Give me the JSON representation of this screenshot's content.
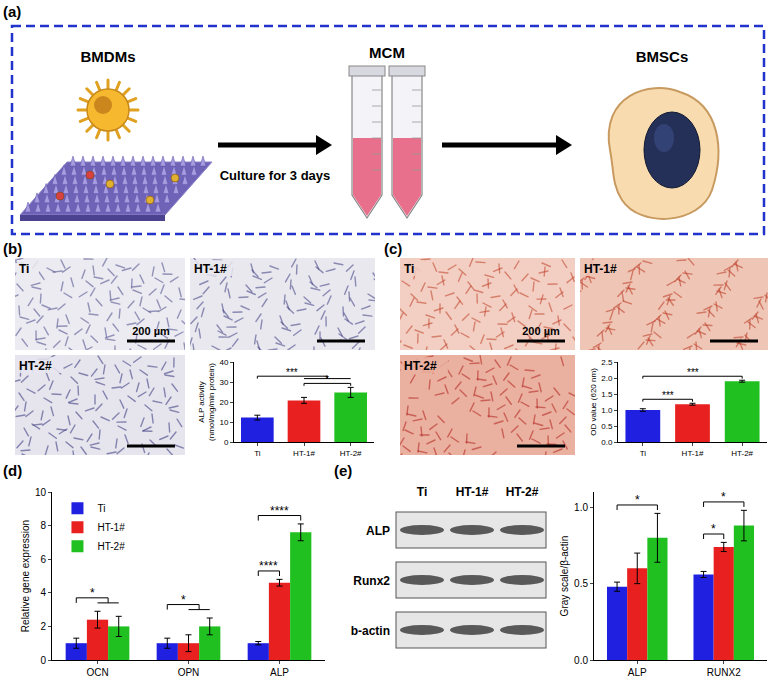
{
  "panel_labels": [
    "(a)",
    "(b)",
    "(c)",
    "(d)",
    "(e)"
  ],
  "schematic": {
    "cell_label": "BMDMs",
    "arrow_label": "Culture for 3 days",
    "medium_label": "MCM",
    "target_label": "BMSCs"
  },
  "micrographs": {
    "b": {
      "labels": [
        "Ti",
        "HT-1#",
        "HT-2#"
      ],
      "scale_bar": "200 µm"
    },
    "c": {
      "labels": [
        "Ti",
        "HT-1#",
        "HT-2#"
      ],
      "scale_bar": "200 µm"
    }
  },
  "western_blot": {
    "lanes": [
      "Ti",
      "HT-1#",
      "HT-2#"
    ],
    "rows": [
      "ALP",
      "Runx2",
      "b-actin"
    ]
  },
  "chart_data": [
    {
      "type": "bar",
      "ylabel": [
        "ALP activity",
        "(nmol/mg/min protein)"
      ],
      "categories": [
        "Ti",
        "HT-1#",
        "HT-2#"
      ],
      "values": [
        12.2,
        20.8,
        24.8
      ],
      "errors": [
        1.2,
        1.5,
        2.5
      ],
      "colors": [
        "#2020e0",
        "#e82020",
        "#20c020"
      ],
      "ylim": [
        0,
        40
      ],
      "yticks": [
        0,
        10,
        20,
        30,
        40
      ],
      "grid": false,
      "significance": [
        {
          "from": "HT-1#",
          "to": "HT-2#",
          "label": "*"
        },
        {
          "from": "Ti",
          "to": [
            "HT-1#",
            "HT-2#"
          ],
          "label": "***"
        }
      ]
    },
    {
      "type": "bar",
      "ylabel": "OD value (620 nm)",
      "categories": [
        "Ti",
        "HT-1#",
        "HT-2#"
      ],
      "values": [
        1.0,
        1.18,
        1.9
      ],
      "errors": [
        0.04,
        0.03,
        0.03
      ],
      "colors": [
        "#2020e0",
        "#e82020",
        "#20c020"
      ],
      "ylim": [
        0,
        2.5
      ],
      "yticks": [
        {
          "value": 0,
          "label": "0.0"
        },
        {
          "value": 0.5,
          "label": "0.5"
        },
        {
          "value": 1,
          "label": "1.0"
        },
        {
          "value": 1.5,
          "label": "1.5"
        },
        {
          "value": 2,
          "label": "2.0"
        },
        {
          "value": 2.5,
          "label": "2.5"
        }
      ],
      "grid": false,
      "significance": [
        {
          "from": "Ti",
          "to": "HT-1#",
          "label": "***"
        },
        {
          "from": "Ti",
          "to": "HT-2#",
          "label": "***"
        }
      ]
    },
    {
      "type": "bar",
      "ylabel": "Relative gene expression",
      "categories": [
        "OCN",
        "OPN",
        "ALP"
      ],
      "series": [
        {
          "name": "Ti",
          "color": "#2020e0",
          "values": [
            1.0,
            1.0,
            1.0
          ],
          "errors": [
            0.3,
            0.3,
            0.1
          ]
        },
        {
          "name": "HT-1#",
          "color": "#e82020",
          "values": [
            2.4,
            1.0,
            4.6
          ],
          "errors": [
            0.5,
            0.5,
            0.2
          ]
        },
        {
          "name": "HT-2#",
          "color": "#20c020",
          "values": [
            2.0,
            2.0,
            7.6
          ],
          "errors": [
            0.6,
            0.5,
            0.5
          ]
        }
      ],
      "ylim": [
        0,
        10
      ],
      "yticks": [
        0,
        2,
        4,
        6,
        8,
        10
      ],
      "grid": false,
      "legend": "top left",
      "significance": [
        {
          "category": "OCN",
          "from": "Ti",
          "to": [
            "HT-1#",
            "HT-2#"
          ],
          "label": "*"
        },
        {
          "category": "OPN",
          "from": "Ti",
          "to": [
            "HT-1#",
            "HT-2#"
          ],
          "label": "*"
        },
        {
          "category": "ALP",
          "from": "Ti",
          "to": "HT-1#",
          "label": "****"
        },
        {
          "category": "ALP",
          "from": "Ti",
          "to": "HT-2#",
          "label": "****"
        }
      ]
    },
    {
      "type": "bar",
      "ylabel": "Gray scale/β-actin",
      "categories": [
        "ALP",
        "RUNX2"
      ],
      "series": [
        {
          "name": "Ti",
          "color": "#2020e0",
          "values": [
            0.48,
            0.56
          ],
          "errors": [
            0.03,
            0.02
          ]
        },
        {
          "name": "HT-1#",
          "color": "#e82020",
          "values": [
            0.6,
            0.74
          ],
          "errors": [
            0.1,
            0.03
          ]
        },
        {
          "name": "HT-2#",
          "color": "#20c020",
          "values": [
            0.8,
            0.88
          ],
          "errors": [
            0.16,
            0.1
          ]
        }
      ],
      "ylim": [
        0,
        1.1
      ],
      "yticks": [
        {
          "value": 0,
          "label": "0.0"
        },
        {
          "value": 0.5,
          "label": "0.5"
        },
        {
          "value": 1,
          "label": "1.0"
        }
      ],
      "grid": false,
      "significance": [
        {
          "category": "ALP",
          "from": "Ti",
          "to": "HT-2#",
          "label": "*"
        },
        {
          "category": "RUNX2",
          "from": "Ti",
          "to": "HT-1#",
          "label": "*"
        },
        {
          "category": "RUNX2",
          "from": "Ti",
          "to": "HT-2#",
          "label": "*"
        }
      ]
    }
  ]
}
